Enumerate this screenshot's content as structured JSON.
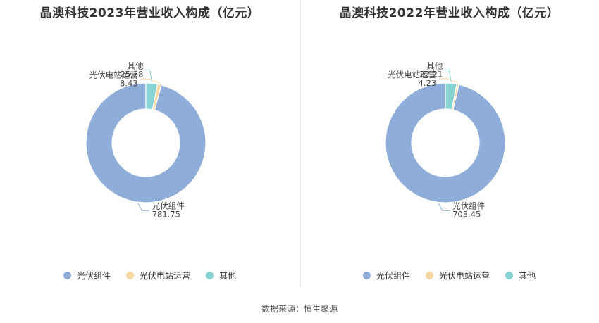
{
  "colors": {
    "series": [
      "#8eadd9",
      "#f8d8a1",
      "#88d4d4"
    ]
  },
  "source": "数据来源：恒生聚源",
  "chart_data": [
    {
      "type": "pie",
      "title": "晶澳科技2023年营业收入构成（亿元）",
      "categories": [
        "光伏组件",
        "光伏电站运营",
        "其他"
      ],
      "values": [
        781.75,
        8.43,
        25.38
      ],
      "value_labels": [
        "781.75",
        "8.43",
        "25.38"
      ],
      "donut": true,
      "legend": "bottom"
    },
    {
      "type": "pie",
      "title": "晶澳科技2022年营业收入构成（亿元）",
      "categories": [
        "光伏组件",
        "光伏电站运营",
        "其他"
      ],
      "values": [
        703.45,
        4.23,
        22.21
      ],
      "value_labels": [
        "703.45",
        "4.23",
        "22.21"
      ],
      "donut": true,
      "legend": "bottom"
    }
  ]
}
